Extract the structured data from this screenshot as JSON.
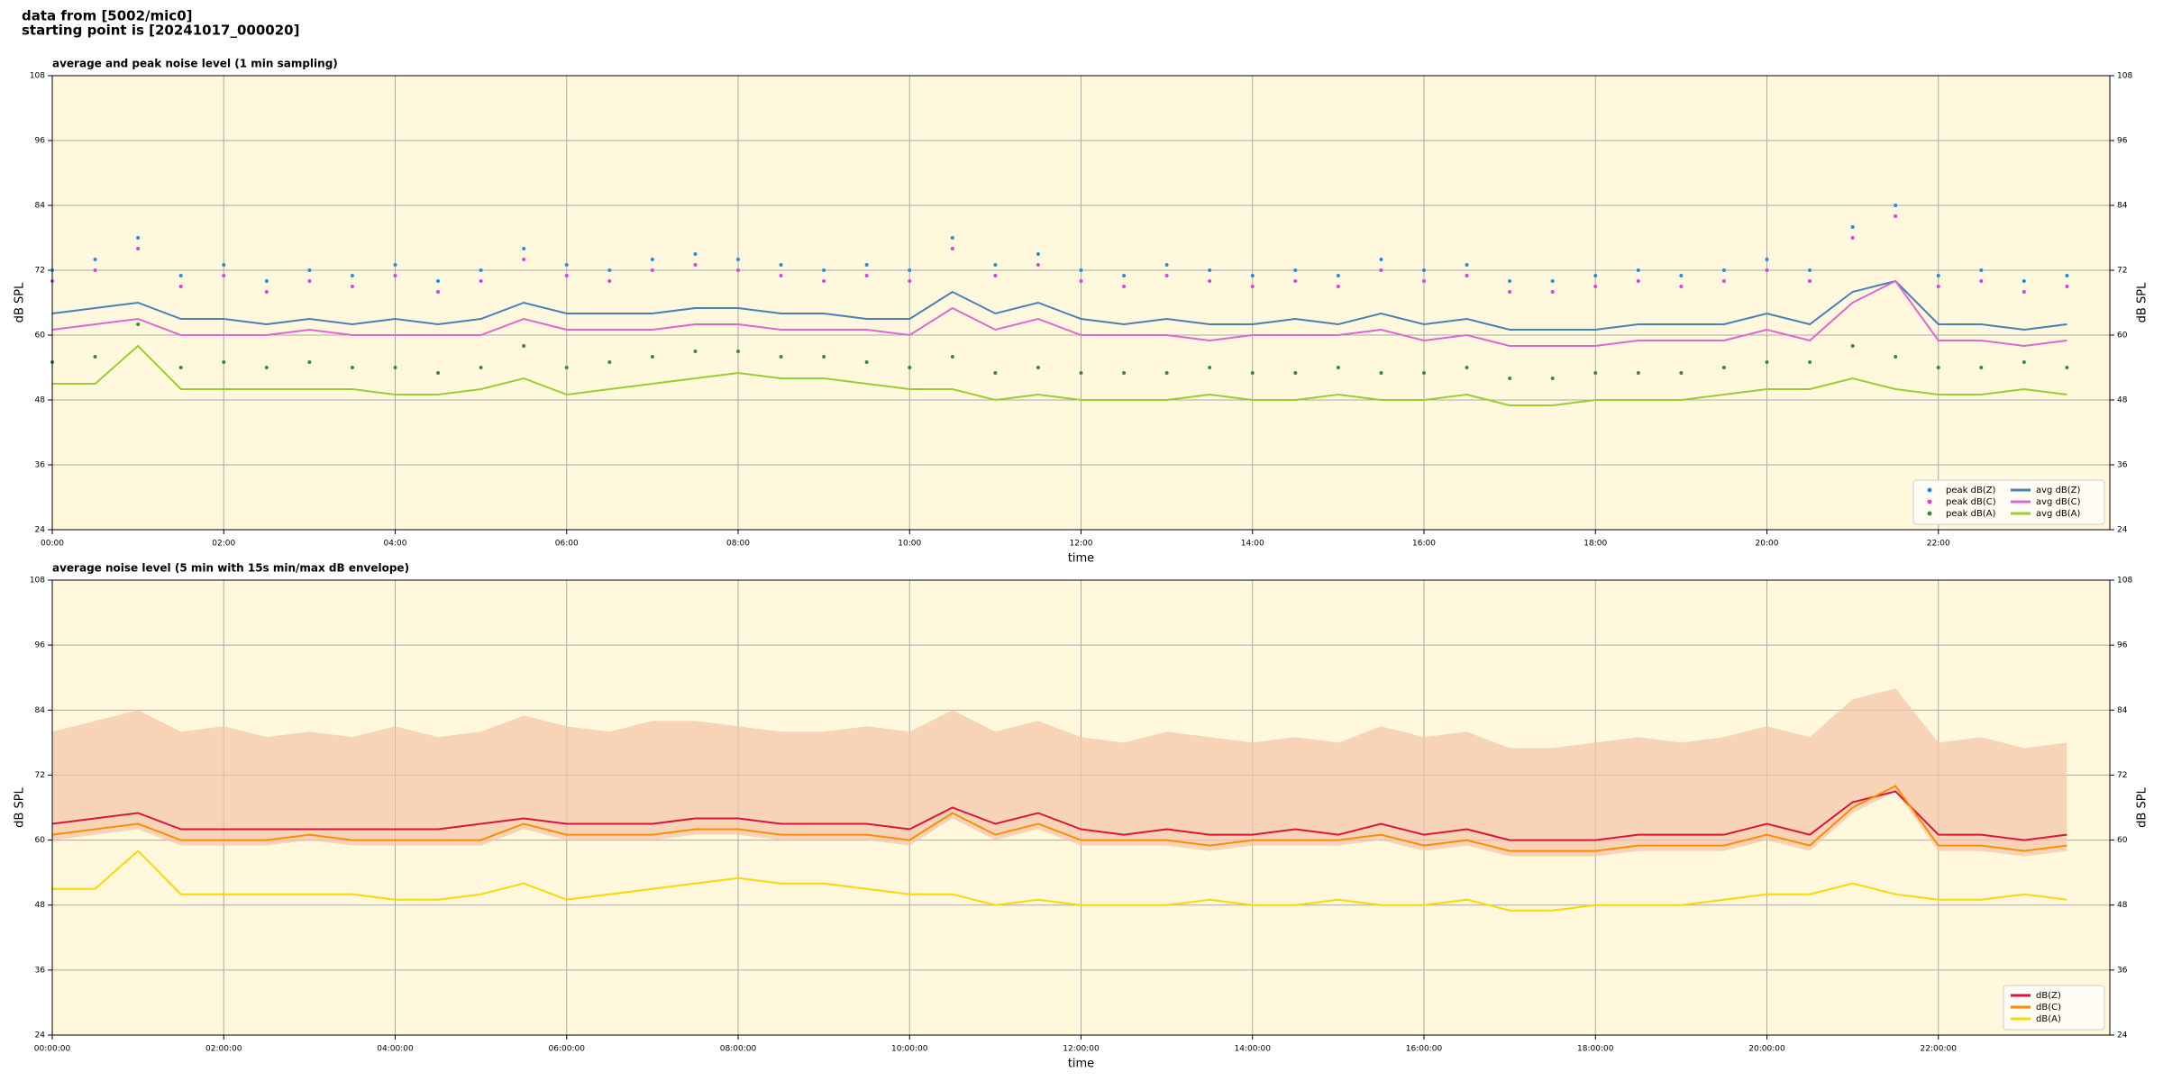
{
  "header": {
    "lines": [
      "data from [5002/mic0]",
      "starting point is [20241017_000020]"
    ]
  },
  "chart_data": [
    {
      "type": "line",
      "title": "average and peak noise level (1 min sampling)",
      "xlabel": "time",
      "ylabel": "dB SPL",
      "background": "#fff8dc",
      "grid": true,
      "legend": "lower right",
      "legend_columns": 2,
      "xlim": [
        0,
        24
      ],
      "ylim": [
        24,
        108
      ],
      "yticks": [
        24,
        36,
        48,
        60,
        72,
        84,
        96,
        108
      ],
      "xticks": [
        {
          "value": 0,
          "label": "00:00"
        },
        {
          "value": 2,
          "label": "02:00"
        },
        {
          "value": 4,
          "label": "04:00"
        },
        {
          "value": 6,
          "label": "06:00"
        },
        {
          "value": 8,
          "label": "08:00"
        },
        {
          "value": 10,
          "label": "10:00"
        },
        {
          "value": 12,
          "label": "12:00"
        },
        {
          "value": 14,
          "label": "14:00"
        },
        {
          "value": 16,
          "label": "16:00"
        },
        {
          "value": 18,
          "label": "18:00"
        },
        {
          "value": 20,
          "label": "20:00"
        },
        {
          "value": 22,
          "label": "22:00"
        }
      ],
      "x": [
        0,
        0.5,
        1,
        1.5,
        2,
        2.5,
        3,
        3.5,
        4,
        4.5,
        5,
        5.5,
        6,
        6.5,
        7,
        7.5,
        8,
        8.5,
        9,
        9.5,
        10,
        10.5,
        11,
        11.5,
        12,
        12.5,
        13,
        13.5,
        14,
        14.5,
        15,
        15.5,
        16,
        16.5,
        17,
        17.5,
        18,
        18.5,
        19,
        19.5,
        20,
        20.5,
        21,
        21.5,
        22,
        22.5,
        23,
        23.5
      ],
      "series": [
        {
          "name": "peak dB(Z)",
          "style": "scatter",
          "color": "#1f8fe0",
          "values": [
            72,
            74,
            78,
            71,
            73,
            70,
            72,
            71,
            73,
            70,
            72,
            76,
            73,
            72,
            74,
            75,
            74,
            73,
            72,
            73,
            72,
            78,
            73,
            75,
            72,
            71,
            73,
            72,
            71,
            72,
            71,
            74,
            72,
            73,
            70,
            70,
            71,
            72,
            71,
            72,
            74,
            72,
            80,
            84,
            71,
            72,
            70,
            71
          ]
        },
        {
          "name": "peak dB(C)",
          "style": "scatter",
          "color": "#e040e0",
          "values": [
            70,
            72,
            76,
            69,
            71,
            68,
            70,
            69,
            71,
            68,
            70,
            74,
            71,
            70,
            72,
            73,
            72,
            71,
            70,
            71,
            70,
            76,
            71,
            73,
            70,
            69,
            71,
            70,
            69,
            70,
            69,
            72,
            70,
            71,
            68,
            68,
            69,
            70,
            69,
            70,
            72,
            70,
            78,
            82,
            69,
            70,
            68,
            69
          ]
        },
        {
          "name": "peak dB(A)",
          "style": "scatter",
          "color": "#3a8a3a",
          "values": [
            55,
            56,
            62,
            54,
            55,
            54,
            55,
            54,
            54,
            53,
            54,
            58,
            54,
            55,
            56,
            57,
            57,
            56,
            56,
            55,
            54,
            56,
            53,
            54,
            53,
            53,
            53,
            54,
            53,
            53,
            54,
            53,
            53,
            54,
            52,
            52,
            53,
            53,
            53,
            54,
            55,
            55,
            58,
            56,
            54,
            54,
            55,
            54
          ]
        },
        {
          "name": "avg dB(Z)",
          "style": "line",
          "color": "#4a7fb5",
          "values": [
            64,
            65,
            66,
            63,
            63,
            62,
            63,
            62,
            63,
            62,
            63,
            66,
            64,
            64,
            64,
            65,
            65,
            64,
            64,
            63,
            63,
            68,
            64,
            66,
            63,
            62,
            63,
            62,
            62,
            63,
            62,
            64,
            62,
            63,
            61,
            61,
            61,
            62,
            62,
            62,
            64,
            62,
            68,
            70,
            62,
            62,
            61,
            62
          ]
        },
        {
          "name": "avg dB(C)",
          "style": "line",
          "color": "#e066d0",
          "values": [
            61,
            62,
            63,
            60,
            60,
            60,
            61,
            60,
            60,
            60,
            60,
            63,
            61,
            61,
            61,
            62,
            62,
            61,
            61,
            61,
            60,
            65,
            61,
            63,
            60,
            60,
            60,
            59,
            60,
            60,
            60,
            61,
            59,
            60,
            58,
            58,
            58,
            59,
            59,
            59,
            61,
            59,
            66,
            70,
            59,
            59,
            58,
            59
          ]
        },
        {
          "name": "avg dB(A)",
          "style": "line",
          "color": "#9acd32",
          "values": [
            51,
            51,
            58,
            50,
            50,
            50,
            50,
            50,
            49,
            49,
            50,
            52,
            49,
            50,
            51,
            52,
            53,
            52,
            52,
            51,
            50,
            50,
            48,
            49,
            48,
            48,
            48,
            49,
            48,
            48,
            49,
            48,
            48,
            49,
            47,
            47,
            48,
            48,
            48,
            49,
            50,
            50,
            52,
            50,
            49,
            49,
            50,
            49
          ]
        }
      ]
    },
    {
      "type": "line",
      "title": "average noise level (5 min with 15s min/max dB envelope)",
      "xlabel": "time",
      "ylabel": "dB SPL",
      "background": "#fff8dc",
      "grid": true,
      "legend": "lower right",
      "legend_columns": 1,
      "xlim": [
        0,
        24
      ],
      "ylim": [
        24,
        108
      ],
      "yticks": [
        24,
        36,
        48,
        60,
        72,
        84,
        96,
        108
      ],
      "xticks": [
        {
          "value": 0,
          "label": "00:00:00"
        },
        {
          "value": 2,
          "label": "02:00:00"
        },
        {
          "value": 4,
          "label": "04:00:00"
        },
        {
          "value": 6,
          "label": "06:00:00"
        },
        {
          "value": 8,
          "label": "08:00:00"
        },
        {
          "value": 10,
          "label": "10:00:00"
        },
        {
          "value": 12,
          "label": "12:00:00"
        },
        {
          "value": 14,
          "label": "14:00:00"
        },
        {
          "value": 16,
          "label": "16:00:00"
        },
        {
          "value": 18,
          "label": "18:00:00"
        },
        {
          "value": 20,
          "label": "20:00:00"
        },
        {
          "value": 22,
          "label": "22:00:00"
        }
      ],
      "x": [
        0,
        0.5,
        1,
        1.5,
        2,
        2.5,
        3,
        3.5,
        4,
        4.5,
        5,
        5.5,
        6,
        6.5,
        7,
        7.5,
        8,
        8.5,
        9,
        9.5,
        10,
        10.5,
        11,
        11.5,
        12,
        12.5,
        13,
        13.5,
        14,
        14.5,
        15,
        15.5,
        16,
        16.5,
        17,
        17.5,
        18,
        18.5,
        19,
        19.5,
        20,
        20.5,
        21,
        21.5,
        22,
        22.5,
        23,
        23.5
      ],
      "envelope": {
        "color": "#f4c4a8",
        "high": [
          80,
          82,
          84,
          80,
          81,
          79,
          80,
          79,
          81,
          79,
          80,
          83,
          81,
          80,
          82,
          82,
          81,
          80,
          80,
          81,
          80,
          84,
          80,
          82,
          79,
          78,
          80,
          79,
          78,
          79,
          78,
          81,
          79,
          80,
          77,
          77,
          78,
          79,
          78,
          79,
          81,
          79,
          86,
          88,
          78,
          79,
          77,
          78
        ],
        "low": [
          60,
          61,
          62,
          59,
          59,
          59,
          60,
          59,
          59,
          59,
          59,
          62,
          60,
          60,
          60,
          61,
          61,
          60,
          60,
          60,
          59,
          64,
          60,
          62,
          59,
          59,
          59,
          58,
          59,
          59,
          59,
          60,
          58,
          59,
          57,
          57,
          57,
          58,
          58,
          58,
          60,
          58,
          65,
          69,
          58,
          58,
          57,
          58
        ]
      },
      "series": [
        {
          "name": "dB(Z)",
          "style": "line",
          "color": "#dc143c",
          "values": [
            63,
            64,
            65,
            62,
            62,
            62,
            62,
            62,
            62,
            62,
            63,
            64,
            63,
            63,
            63,
            64,
            64,
            63,
            63,
            63,
            62,
            66,
            63,
            65,
            62,
            61,
            62,
            61,
            61,
            62,
            61,
            63,
            61,
            62,
            60,
            60,
            60,
            61,
            61,
            61,
            63,
            61,
            67,
            69,
            61,
            61,
            60,
            61
          ]
        },
        {
          "name": "dB(C)",
          "style": "line",
          "color": "#ff8c00",
          "values": [
            61,
            62,
            63,
            60,
            60,
            60,
            61,
            60,
            60,
            60,
            60,
            63,
            61,
            61,
            61,
            62,
            62,
            61,
            61,
            61,
            60,
            65,
            61,
            63,
            60,
            60,
            60,
            59,
            60,
            60,
            60,
            61,
            59,
            60,
            58,
            58,
            58,
            59,
            59,
            59,
            61,
            59,
            66,
            70,
            59,
            59,
            58,
            59
          ]
        },
        {
          "name": "dB(A)",
          "style": "line",
          "color": "#ffd700",
          "values": [
            51,
            51,
            58,
            50,
            50,
            50,
            50,
            50,
            49,
            49,
            50,
            52,
            49,
            50,
            51,
            52,
            53,
            52,
            52,
            51,
            50,
            50,
            48,
            49,
            48,
            48,
            48,
            49,
            48,
            48,
            49,
            48,
            48,
            49,
            47,
            47,
            48,
            48,
            48,
            49,
            50,
            50,
            52,
            50,
            49,
            49,
            50,
            49
          ]
        }
      ]
    }
  ]
}
